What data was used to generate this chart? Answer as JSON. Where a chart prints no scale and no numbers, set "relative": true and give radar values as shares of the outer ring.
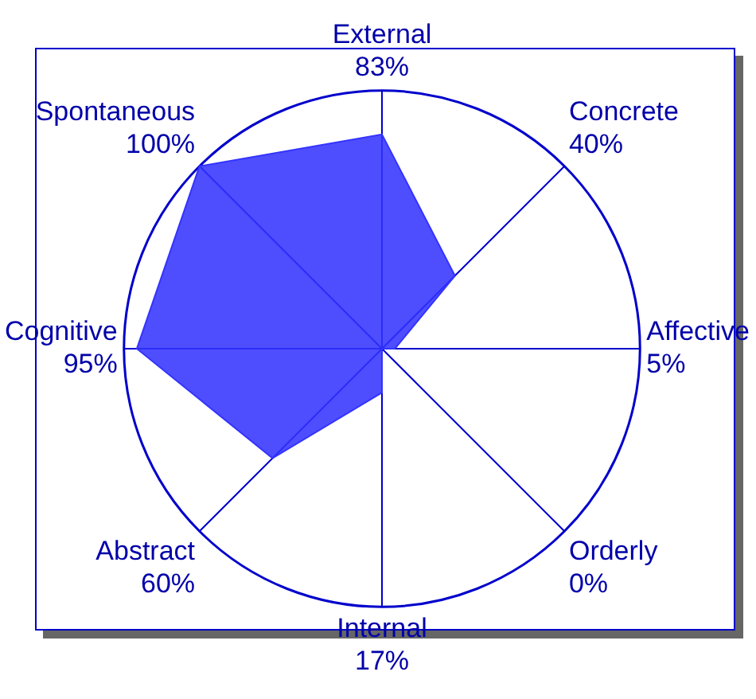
{
  "chart_data": {
    "type": "radar",
    "relative": true,
    "categories": [
      "External\n83%",
      "Concrete\n40%",
      "Affective\n5%",
      "Orderly\n0%",
      "Internal\n17%",
      "Abstract\n60%",
      "Cognitive\n95%",
      "Spontaneous\n100%"
    ],
    "series": [
      {
        "color": "#3333ff",
        "values": [
          0.83,
          0.4,
          0.05,
          0,
          0.17,
          0.6,
          0.95,
          1
        ]
      }
    ],
    "grid": true,
    "legend": false,
    "marker": "none"
  }
}
